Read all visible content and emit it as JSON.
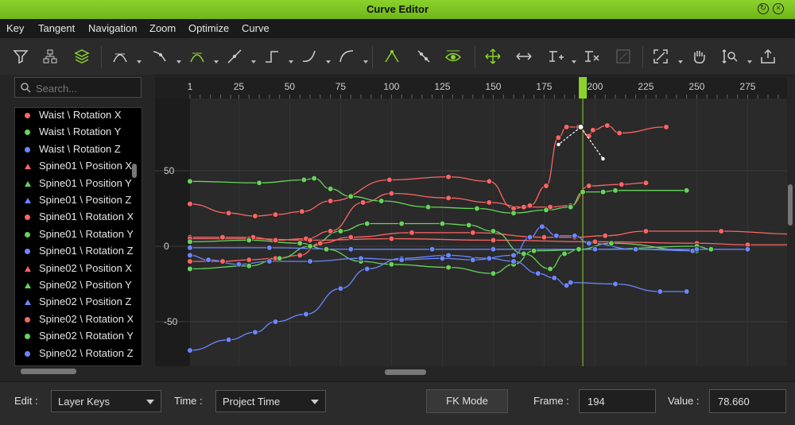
{
  "window": {
    "title": "Curve Editor"
  },
  "menu": [
    "Key",
    "Tangent",
    "Navigation",
    "Zoom",
    "Optimize",
    "Curve"
  ],
  "toolbar": {
    "icons": [
      "filter-icon",
      "hierarchy-icon",
      "layers-icon",
      "auto-tangent-icon",
      "linear-in-icon",
      "smooth-tangent-icon",
      "linear-tangent-icon",
      "step-tangent-icon",
      "ease-curve-icon",
      "bezier-icon",
      "break-tangent-icon",
      "unify-tangent-icon",
      "show-tangent-icon",
      "move-key-icon",
      "horizontal-move-icon",
      "add-key-icon",
      "delete-key-icon",
      "snap-icon",
      "fit-view-icon",
      "pan-hand-icon",
      "zoom-value-icon",
      "export-icon"
    ]
  },
  "search": {
    "placeholder": "Search..."
  },
  "tracks": [
    {
      "label": "Waist \\ Rotation X",
      "color": "#ff6464",
      "shape": "circle"
    },
    {
      "label": "Waist \\ Rotation Y",
      "color": "#66d45a",
      "shape": "circle"
    },
    {
      "label": "Waist \\ Rotation Z",
      "color": "#6b86ff",
      "shape": "circle"
    },
    {
      "label": "Spine01 \\ Position X",
      "color": "#ff6464",
      "shape": "triangle"
    },
    {
      "label": "Spine01 \\ Position Y",
      "color": "#66d45a",
      "shape": "triangle"
    },
    {
      "label": "Spine01 \\ Position Z",
      "color": "#6b86ff",
      "shape": "triangle"
    },
    {
      "label": "Spine01 \\ Rotation X",
      "color": "#ff6464",
      "shape": "circle"
    },
    {
      "label": "Spine01 \\ Rotation Y",
      "color": "#66d45a",
      "shape": "circle"
    },
    {
      "label": "Spine01 \\ Rotation Z",
      "color": "#6b86ff",
      "shape": "circle"
    },
    {
      "label": "Spine02 \\ Position X",
      "color": "#ff6464",
      "shape": "triangle"
    },
    {
      "label": "Spine02 \\ Position Y",
      "color": "#66d45a",
      "shape": "triangle"
    },
    {
      "label": "Spine02 \\ Position Z",
      "color": "#6b86ff",
      "shape": "triangle"
    },
    {
      "label": "Spine02 \\ Rotation X",
      "color": "#ff6464",
      "shape": "circle"
    },
    {
      "label": "Spine02 \\ Rotation Y",
      "color": "#66d45a",
      "shape": "circle"
    },
    {
      "label": "Spine02 \\ Rotation Z",
      "color": "#6b86ff",
      "shape": "circle"
    }
  ],
  "graph": {
    "x_ticks": [
      "1",
      "25",
      "50",
      "75",
      "100",
      "125",
      "150",
      "175",
      "200",
      "225",
      "250",
      "275"
    ],
    "y_ticks": [
      "50",
      "0",
      "-50"
    ],
    "current_frame": 194,
    "colors": {
      "red": "#ff6464",
      "green": "#66d45a",
      "blue": "#6b86ff",
      "accent": "#8cd22c"
    },
    "curves": [
      {
        "color": "#ff6464",
        "keys": [
          [
            1,
            28
          ],
          [
            20,
            22
          ],
          [
            33,
            20
          ],
          [
            43,
            21
          ],
          [
            56,
            23
          ],
          [
            70,
            30
          ],
          [
            99,
            44
          ],
          [
            128,
            46
          ],
          [
            148,
            43
          ],
          [
            160,
            25
          ],
          [
            168,
            27
          ],
          [
            176,
            40
          ],
          [
            182,
            72
          ],
          [
            186,
            79
          ],
          [
            192,
            79
          ],
          [
            197,
            73
          ],
          [
            199,
            77
          ],
          [
            206,
            80
          ],
          [
            212,
            75
          ],
          [
            235,
            79
          ]
        ]
      },
      {
        "color": "#ff6464",
        "keys": [
          [
            1,
            6
          ],
          [
            17,
            6
          ],
          [
            32,
            6
          ],
          [
            43,
            4
          ],
          [
            58,
            5
          ],
          [
            70,
            10
          ],
          [
            86,
            29
          ],
          [
            100,
            35
          ],
          [
            128,
            32
          ],
          [
            148,
            29
          ],
          [
            165,
            26
          ],
          [
            178,
            26
          ],
          [
            188,
            27
          ],
          [
            197,
            40
          ],
          [
            213,
            41
          ],
          [
            225,
            42
          ]
        ]
      },
      {
        "color": "#ff6464",
        "keys": [
          [
            1,
            5
          ],
          [
            30,
            5
          ],
          [
            60,
            4
          ],
          [
            100,
            5
          ],
          [
            150,
            4
          ],
          [
            200,
            3
          ],
          [
            250,
            2
          ],
          [
            275,
            1
          ],
          [
            300,
            1
          ]
        ]
      },
      {
        "color": "#ff6464",
        "keys": [
          [
            1,
            -10
          ],
          [
            17,
            -10
          ],
          [
            30,
            -9
          ],
          [
            43,
            -8
          ],
          [
            55,
            -6
          ],
          [
            65,
            2
          ],
          [
            80,
            6
          ],
          [
            110,
            9
          ],
          [
            140,
            9
          ],
          [
            175,
            6
          ],
          [
            190,
            6
          ],
          [
            205,
            7
          ],
          [
            225,
            10
          ],
          [
            262,
            10
          ],
          [
            300,
            8
          ]
        ]
      },
      {
        "color": "#66d45a",
        "keys": [
          [
            1,
            43
          ],
          [
            35,
            42
          ],
          [
            57,
            44
          ],
          [
            62,
            45
          ],
          [
            70,
            38
          ],
          [
            80,
            33
          ],
          [
            95,
            30
          ],
          [
            118,
            26
          ],
          [
            142,
            25
          ],
          [
            160,
            22
          ],
          [
            176,
            24
          ],
          [
            188,
            26
          ],
          [
            194,
            36
          ],
          [
            204,
            36
          ],
          [
            210,
            37
          ],
          [
            245,
            37
          ]
        ]
      },
      {
        "color": "#66d45a",
        "keys": [
          [
            1,
            -15
          ],
          [
            30,
            -13
          ],
          [
            45,
            -8
          ],
          [
            60,
            0
          ],
          [
            75,
            10
          ],
          [
            88,
            15
          ],
          [
            105,
            15
          ],
          [
            125,
            15
          ],
          [
            138,
            14
          ],
          [
            150,
            10
          ],
          [
            165,
            -5
          ],
          [
            178,
            -15
          ],
          [
            185,
            -5
          ],
          [
            192,
            -2
          ],
          [
            208,
            2
          ],
          [
            250,
            -3
          ]
        ]
      },
      {
        "color": "#66d45a",
        "keys": [
          [
            1,
            3
          ],
          [
            30,
            4
          ],
          [
            55,
            2
          ],
          [
            68,
            -2
          ],
          [
            85,
            -10
          ],
          [
            100,
            -12
          ],
          [
            128,
            -14
          ],
          [
            150,
            -18
          ],
          [
            160,
            -12
          ],
          [
            170,
            -3
          ],
          [
            200,
            -2
          ],
          [
            250,
            0
          ],
          [
            257,
            -2
          ]
        ]
      },
      {
        "color": "#6b86ff",
        "keys": [
          [
            1,
            -69
          ],
          [
            20,
            -62
          ],
          [
            33,
            -57
          ],
          [
            43,
            -50
          ],
          [
            58,
            -45
          ],
          [
            75,
            -28
          ],
          [
            88,
            -15
          ],
          [
            105,
            -8
          ],
          [
            128,
            -6
          ],
          [
            148,
            -8
          ],
          [
            160,
            -10
          ],
          [
            172,
            -18
          ],
          [
            180,
            -21
          ],
          [
            186,
            -26
          ],
          [
            188,
            -24
          ],
          [
            210,
            -25
          ],
          [
            232,
            -30
          ],
          [
            245,
            -30
          ]
        ]
      },
      {
        "color": "#6b86ff",
        "keys": [
          [
            1,
            -6
          ],
          [
            10,
            -9
          ],
          [
            25,
            -12
          ],
          [
            40,
            -10
          ],
          [
            60,
            -10
          ],
          [
            85,
            -8
          ],
          [
            105,
            -9
          ],
          [
            125,
            -8
          ],
          [
            140,
            -9
          ],
          [
            160,
            -6
          ],
          [
            168,
            6
          ],
          [
            174,
            13
          ],
          [
            181,
            7
          ],
          [
            190,
            7
          ],
          [
            197,
            2
          ],
          [
            220,
            -2
          ],
          [
            248,
            -3
          ]
        ]
      },
      {
        "color": "#6b86ff",
        "keys": [
          [
            1,
            -1
          ],
          [
            40,
            -1
          ],
          [
            80,
            -2
          ],
          [
            120,
            -2
          ],
          [
            150,
            -2
          ],
          [
            200,
            -2
          ],
          [
            250,
            -2
          ],
          [
            275,
            -2
          ]
        ]
      }
    ]
  },
  "footer": {
    "edit_label": "Edit :",
    "edit_value": "Layer Keys",
    "time_label": "Time :",
    "time_value": "Project Time",
    "mode_button": "FK Mode",
    "frame_label": "Frame :",
    "frame_value": "194",
    "value_label": "Value :",
    "value_value": "78.660"
  }
}
